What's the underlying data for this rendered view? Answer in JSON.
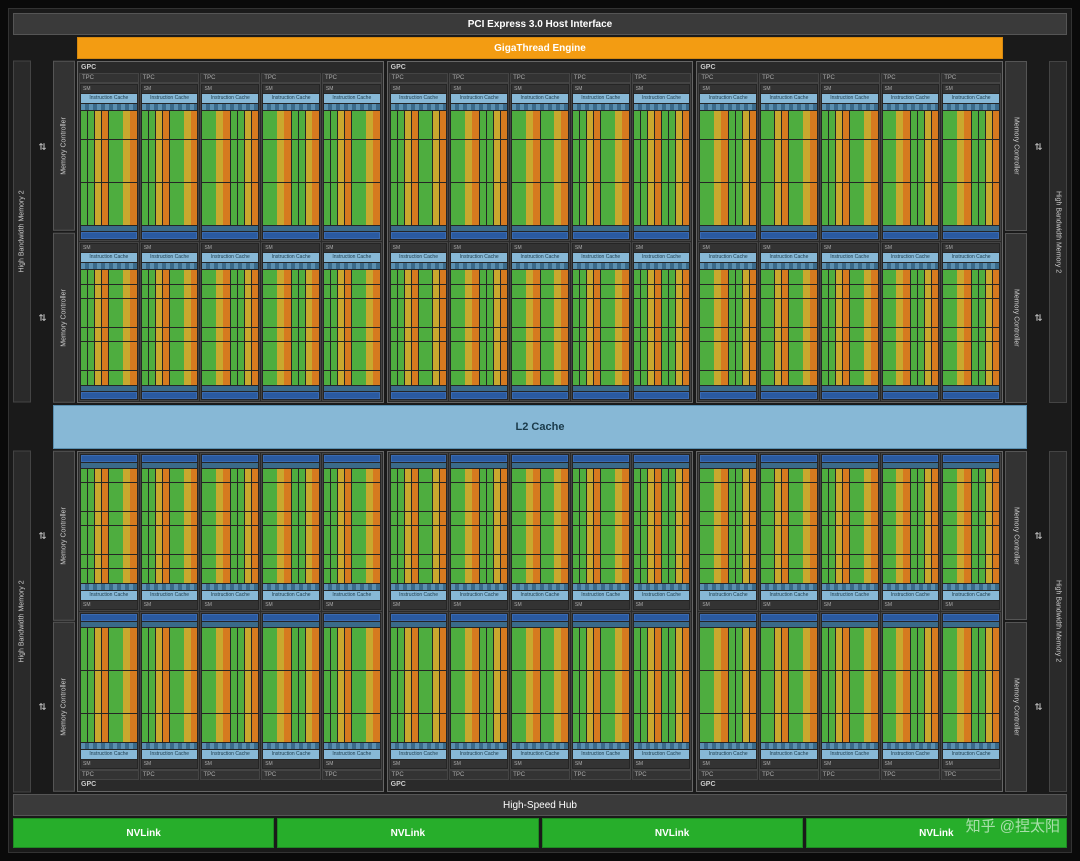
{
  "labels": {
    "pci": "PCI Express 3.0 Host Interface",
    "gigathread": "GigaThread Engine",
    "hbm": "High Bandwidth Memory 2",
    "memctrl": "Memory Controller",
    "gpc": "GPC",
    "tpc": "TPC",
    "sm": "SM",
    "icache": "Instruction Cache",
    "l2": "L2 Cache",
    "hshub": "High-Speed Hub",
    "nvlink": "NVLink",
    "watermark": "知乎 @捏太阳"
  },
  "layout": {
    "gpc_per_row": 3,
    "tpc_per_gpc": 5,
    "sm_per_tpc": 2,
    "memctrl_per_side": 2,
    "nvlink_count": 4,
    "core_cols_per_block": 4,
    "core_rows_per_block": 8,
    "core_blocks": 2
  },
  "colors": {
    "background": "#0a0a0a",
    "chip": "#1a1a1a",
    "pci": "#3a3a3a",
    "gigathread": "#f39c12",
    "hbm": "#2a2a2a",
    "memctrl": "#333333",
    "gpc_bg": "#2a2a2a",
    "icache": "#87b8d6",
    "l2": "#87b8d6",
    "core_green": "#4ead3f",
    "core_yellow": "#c9a82e",
    "core_orange": "#d67a1f",
    "tex": "#2a5aa0",
    "nvlink": "#27ae2b",
    "text": "#ffffff"
  },
  "arrow_glyph": "⇄"
}
